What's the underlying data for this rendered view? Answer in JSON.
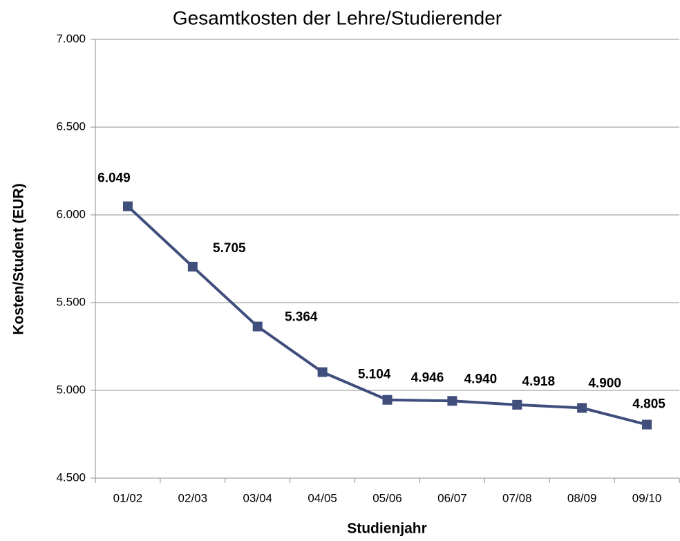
{
  "chart_data": {
    "type": "line",
    "title": "Gesamtkosten der Lehre/Studierender",
    "x_label": "Studienjahr",
    "y_label": "Kosten/Student (EUR)",
    "categories": [
      "01/02",
      "02/03",
      "03/04",
      "04/05",
      "05/06",
      "06/07",
      "07/08",
      "08/09",
      "09/10"
    ],
    "series": [
      {
        "name": "Kosten/Student",
        "color": "#404e7c",
        "values": [
          6049,
          5705,
          5364,
          5104,
          4946,
          4940,
          4918,
          4900,
          4805
        ],
        "value_labels": [
          "6.049",
          "5.705",
          "5.364",
          "5.104",
          "4.946",
          "4.940",
          "4.918",
          "4.900",
          "4.805"
        ]
      }
    ],
    "ylim": [
      4500,
      7000
    ],
    "yticks": [
      {
        "value": 4500,
        "label": "4.500"
      },
      {
        "value": 5000,
        "label": "5.000"
      },
      {
        "value": 5500,
        "label": "5.500"
      },
      {
        "value": 6000,
        "label": "6.000"
      },
      {
        "value": 6500,
        "label": "6.500"
      },
      {
        "value": 7000,
        "label": "7.000"
      }
    ],
    "grid": true
  }
}
